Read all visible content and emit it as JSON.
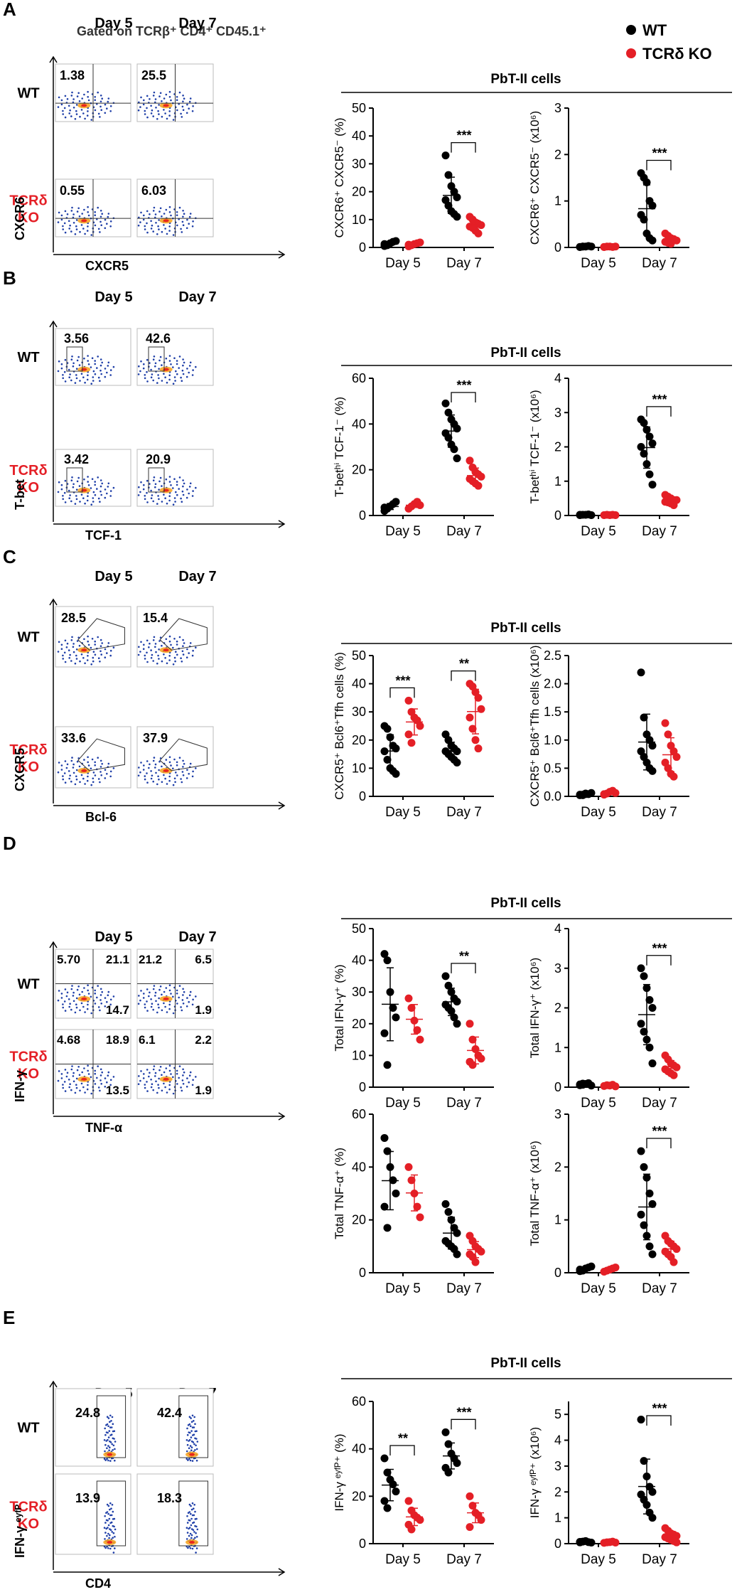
{
  "figure": {
    "legend": {
      "wt": "WT",
      "ko": "TCRδ KO",
      "wt_color": "#000000",
      "ko_color": "#e41f26"
    },
    "gating_note": "Gated on TCRβ⁺ CD4⁺ CD45.1⁺",
    "days": [
      "Day 5",
      "Day 7"
    ],
    "row_labels": {
      "wt": "WT",
      "ko_line1": "TCRδ",
      "ko_line2": "KO"
    },
    "ko_label_color": "#e41f26"
  },
  "chart_data": [
    {
      "panel": "A",
      "group_title": "PbT-II cells",
      "flow": {
        "y_label": "CXCR6",
        "x_label": "CXCR5",
        "gate": "quadrant",
        "values": {
          "wt_day5": "1.38",
          "wt_day7": "25.5",
          "ko_day5": "0.55",
          "ko_day7": "6.03"
        }
      },
      "charts": [
        {
          "type": "scatter",
          "ylabel": "CXCR6⁺ CXCR5⁻ (%)",
          "ylim": [
            0,
            50
          ],
          "yticks": [
            "0",
            "10",
            "20",
            "30",
            "40",
            "50"
          ],
          "categories": [
            "Day 5",
            "Day 7"
          ],
          "series": [
            {
              "name": "WT",
              "day5": [
                0.5,
                1.0,
                1.5,
                2.0,
                2.3,
                1.2,
                0.8
              ],
              "day7": [
                33,
                26,
                22,
                20,
                18,
                17,
                15,
                13,
                12,
                11
              ]
            },
            {
              "name": "TCRδ KO",
              "day5": [
                0.4,
                0.8,
                1.2,
                1.5,
                1.8,
                1.0
              ],
              "day7": [
                11,
                10,
                9,
                8.5,
                8,
                7.5,
                7,
                6,
                5
              ]
            }
          ],
          "significance": [
            {
              "day": "Day 7",
              "label": "***"
            }
          ]
        },
        {
          "type": "scatter",
          "ylabel": "CXCR6⁺ CXCR5⁻ (x10⁶)",
          "ylim": [
            0,
            3
          ],
          "yticks": [
            "0",
            "1",
            "2",
            "3"
          ],
          "categories": [
            "Day 5",
            "Day 7"
          ],
          "series": [
            {
              "name": "WT",
              "day5": [
                0.01,
                0.02,
                0.02,
                0.03,
                0.02,
                0.01,
                0.02
              ],
              "day7": [
                1.6,
                1.5,
                1.4,
                1.0,
                0.9,
                0.7,
                0.6,
                0.3,
                0.2,
                0.15
              ]
            },
            {
              "name": "TCRδ KO",
              "day5": [
                0.01,
                0.02,
                0.02,
                0.01,
                0.02,
                0.01
              ],
              "day7": [
                0.3,
                0.25,
                0.2,
                0.18,
                0.15,
                0.12,
                0.1,
                0.08
              ]
            }
          ],
          "significance": [
            {
              "day": "Day 7",
              "label": "***"
            }
          ]
        }
      ]
    },
    {
      "panel": "B",
      "group_title": "PbT-II cells",
      "flow": {
        "y_label": "T-bet",
        "x_label": "TCF-1",
        "gate": "rect",
        "values": {
          "wt_day5": "3.56",
          "wt_day7": "42.6",
          "ko_day5": "3.42",
          "ko_day7": "20.9"
        }
      },
      "charts": [
        {
          "type": "scatter",
          "ylabel": "T-betʰⁱ TCF-1⁻ (%)",
          "ylim": [
            0,
            60
          ],
          "yticks": [
            "0",
            "20",
            "40",
            "60"
          ],
          "categories": [
            "Day 5",
            "Day 7"
          ],
          "series": [
            {
              "name": "WT",
              "day5": [
                2,
                3,
                4,
                5,
                6,
                3.5
              ],
              "day7": [
                49,
                45,
                42,
                40,
                38,
                36,
                34,
                31,
                29,
                25
              ]
            },
            {
              "name": "TCRδ KO",
              "day5": [
                3,
                4,
                5,
                6,
                4.5
              ],
              "day7": [
                24,
                21,
                19,
                18,
                17,
                16,
                15,
                14,
                13
              ]
            }
          ],
          "significance": [
            {
              "day": "Day 7",
              "label": "***"
            }
          ]
        },
        {
          "type": "scatter",
          "ylabel": "T-betʰⁱ TCF-1⁻ (x10⁶)",
          "ylim": [
            0,
            4
          ],
          "yticks": [
            "0",
            "1",
            "2",
            "3",
            "4"
          ],
          "categories": [
            "Day 5",
            "Day 7"
          ],
          "series": [
            {
              "name": "WT",
              "day5": [
                0.01,
                0.02,
                0.02,
                0.03,
                0.01,
                0.02
              ],
              "day7": [
                2.8,
                2.7,
                2.5,
                2.3,
                2.1,
                2.0,
                1.8,
                1.5,
                1.2,
                0.9
              ]
            },
            {
              "name": "TCRδ KO",
              "day5": [
                0.01,
                0.02,
                0.01,
                0.02,
                0.01
              ],
              "day7": [
                0.6,
                0.55,
                0.5,
                0.45,
                0.45,
                0.4,
                0.38,
                0.35,
                0.3
              ]
            }
          ],
          "significance": [
            {
              "day": "Day 7",
              "label": "***"
            }
          ]
        }
      ]
    },
    {
      "panel": "C",
      "group_title": "PbT-II cells",
      "flow": {
        "y_label": "CXCR5",
        "x_label": "Bcl-6",
        "gate": "polygon",
        "values": {
          "wt_day5": "28.5",
          "wt_day7": "15.4",
          "ko_day5": "33.6",
          "ko_day7": "37.9"
        }
      },
      "charts": [
        {
          "type": "scatter",
          "ylabel": "CXCR5⁺ Bcl6⁺Tfh cells (%)",
          "ylim": [
            0,
            50
          ],
          "yticks": [
            "0",
            "10",
            "20",
            "30",
            "40",
            "50"
          ],
          "categories": [
            "Day 5",
            "Day 7"
          ],
          "series": [
            {
              "name": "WT",
              "day5": [
                25,
                24,
                21,
                18,
                17,
                16,
                13,
                10,
                9,
                8
              ],
              "day7": [
                22,
                20,
                18,
                17,
                16,
                16,
                15,
                14,
                13,
                12
              ]
            },
            {
              "name": "TCRδ KO",
              "day5": [
                34,
                30,
                28,
                27,
                25,
                22,
                19
              ],
              "day7": [
                40,
                39,
                37,
                35,
                31,
                28,
                24,
                20,
                17
              ]
            }
          ],
          "significance": [
            {
              "day": "Day 5",
              "label": "***"
            },
            {
              "day": "Day 7",
              "label": "**"
            }
          ]
        },
        {
          "type": "scatter",
          "ylabel": "CXCR5⁺ Bcl6⁺Tfh cells (x10⁶)",
          "ylim": [
            0,
            2.5
          ],
          "yticks": [
            "0.0",
            "0.5",
            "1.0",
            "1.5",
            "2.0",
            "2.5"
          ],
          "categories": [
            "Day 5",
            "Day 7"
          ],
          "series": [
            {
              "name": "WT",
              "day5": [
                0.02,
                0.03,
                0.05,
                0.04,
                0.06,
                0.03,
                0.02,
                0.04
              ],
              "day7": [
                2.2,
                1.4,
                1.1,
                1.0,
                0.9,
                0.8,
                0.7,
                0.6,
                0.5,
                0.45
              ]
            },
            {
              "name": "TCRδ KO",
              "day5": [
                0.03,
                0.05,
                0.08,
                0.1,
                0.06,
                0.04
              ],
              "day7": [
                1.3,
                1.1,
                0.9,
                0.8,
                0.7,
                0.6,
                0.5,
                0.4,
                0.35
              ]
            }
          ],
          "significance": []
        }
      ]
    },
    {
      "panel": "D",
      "group_title": "PbT-II cells",
      "flow": {
        "y_label": "IFN-γ",
        "x_label": "TNF-α",
        "gate": "quadrant4",
        "values": {
          "wt_day5_ul": "5.70",
          "wt_day5_ur": "21.1",
          "wt_day5_lr": "14.7",
          "wt_day7_ul": "21.2",
          "wt_day7_ur": "6.5",
          "wt_day7_lr": "1.9",
          "ko_day5_ul": "4.68",
          "ko_day5_ur": "18.9",
          "ko_day5_lr": "13.5",
          "ko_day7_ul": "6.1",
          "ko_day7_ur": "2.2",
          "ko_day7_lr": "1.9"
        }
      },
      "charts": [
        {
          "type": "scatter",
          "ylabel": "Total IFN-γ⁺ (%)",
          "ylim": [
            0,
            50
          ],
          "yticks": [
            "0",
            "10",
            "20",
            "30",
            "40",
            "50"
          ],
          "categories": [
            "Day 5",
            "Day 7"
          ],
          "series": [
            {
              "name": "WT",
              "day5": [
                42,
                40,
                30,
                25,
                22,
                17,
                7
              ],
              "day7": [
                35,
                32,
                30,
                28,
                27,
                26,
                25,
                24,
                22,
                20
              ]
            },
            {
              "name": "TCRδ KO",
              "day5": [
                28,
                25,
                21,
                18,
                15
              ],
              "day7": [
                20,
                15,
                12,
                10,
                9,
                8,
                7
              ]
            }
          ],
          "significance": [
            {
              "day": "Day 7",
              "label": "**"
            }
          ]
        },
        {
          "type": "scatter",
          "ylabel": "Total IFN-γ⁺ (x10⁶)",
          "ylim": [
            0,
            4
          ],
          "yticks": [
            "0",
            "1",
            "2",
            "3",
            "4"
          ],
          "categories": [
            "Day 5",
            "Day 7"
          ],
          "series": [
            {
              "name": "WT",
              "day5": [
                0.05,
                0.06,
                0.08,
                0.1,
                0.04,
                0.07,
                0.09
              ],
              "day7": [
                3.0,
                2.8,
                2.5,
                2.2,
                2.0,
                1.6,
                1.4,
                1.2,
                1.0,
                0.6
              ]
            },
            {
              "name": "TCRδ KO",
              "day5": [
                0.03,
                0.05,
                0.04,
                0.06,
                0.02
              ],
              "day7": [
                0.8,
                0.7,
                0.6,
                0.55,
                0.5,
                0.45,
                0.4,
                0.35,
                0.3
              ]
            }
          ],
          "significance": [
            {
              "day": "Day 7",
              "label": "***"
            }
          ]
        },
        {
          "type": "scatter",
          "ylabel": "Total TNF-α⁺ (%)",
          "ylim": [
            0,
            60
          ],
          "yticks": [
            "0",
            "20",
            "40",
            "60"
          ],
          "categories": [
            "Day 5",
            "Day 7"
          ],
          "series": [
            {
              "name": "WT",
              "day5": [
                51,
                46,
                40,
                35,
                30,
                25,
                17
              ],
              "day7": [
                26,
                23,
                20,
                17,
                15,
                12,
                11,
                10,
                9,
                7
              ]
            },
            {
              "name": "TCRδ KO",
              "day5": [
                40,
                35,
                30,
                25,
                21
              ],
              "day7": [
                14,
                12,
                10,
                9,
                8,
                7,
                6,
                4
              ]
            }
          ],
          "significance": []
        },
        {
          "type": "scatter",
          "ylabel": "Total TNF-α⁺ (x10⁶)",
          "ylim": [
            0,
            3
          ],
          "yticks": [
            "0",
            "1",
            "2",
            "3"
          ],
          "categories": [
            "Day 5",
            "Day 7"
          ],
          "series": [
            {
              "name": "WT",
              "day5": [
                0.03,
                0.05,
                0.08,
                0.1,
                0.12,
                0.06,
                0.04
              ],
              "day7": [
                2.3,
                2.0,
                1.8,
                1.5,
                1.3,
                1.1,
                0.9,
                0.7,
                0.5,
                0.35
              ]
            },
            {
              "name": "TCRδ KO",
              "day5": [
                0.02,
                0.04,
                0.06,
                0.08,
                0.1
              ],
              "day7": [
                0.7,
                0.6,
                0.55,
                0.5,
                0.45,
                0.4,
                0.35,
                0.3,
                0.2
              ]
            }
          ],
          "significance": [
            {
              "day": "Day 7",
              "label": "***"
            }
          ]
        }
      ]
    },
    {
      "panel": "E",
      "group_title": "PbT-II cells",
      "flow": {
        "y_label": "IFN-γ ᵉʸᶠᴾ",
        "x_label": "CD4",
        "gate": "tallrect",
        "values": {
          "wt_day5": "24.8",
          "wt_day7": "42.4",
          "ko_day5": "13.9",
          "ko_day7": "18.3"
        }
      },
      "charts": [
        {
          "type": "scatter",
          "ylabel": "IFN-γ ᵉʸᶠᴾ⁺ (%)",
          "ylim": [
            0,
            60
          ],
          "yticks": [
            "0",
            "20",
            "40",
            "60"
          ],
          "categories": [
            "Day 5",
            "Day 7"
          ],
          "series": [
            {
              "name": "WT",
              "day5": [
                36,
                30,
                27,
                25,
                22,
                18,
                15
              ],
              "day7": [
                47,
                42,
                38,
                36,
                34,
                32,
                30
              ]
            },
            {
              "name": "TCRδ KO",
              "day5": [
                18,
                14,
                12,
                11,
                10,
                8,
                6
              ],
              "day7": [
                20,
                16,
                13,
                12,
                10,
                7
              ]
            }
          ],
          "significance": [
            {
              "day": "Day 5",
              "label": "**"
            },
            {
              "day": "Day 7",
              "label": "***"
            }
          ]
        },
        {
          "type": "scatter",
          "ylabel": "IFN-γ ᵉʸᶠᴾ⁺ (x10⁶)",
          "ylim": [
            0,
            5.5
          ],
          "yticks": [
            "0",
            "1",
            "2",
            "3",
            "4",
            "5"
          ],
          "categories": [
            "Day 5",
            "Day 7"
          ],
          "series": [
            {
              "name": "WT",
              "day5": [
                0.05,
                0.08,
                0.1,
                0.06,
                0.04,
                0.07
              ],
              "day7": [
                4.8,
                3.2,
                2.6,
                2.2,
                2.0,
                1.9,
                1.7,
                1.5,
                1.2,
                1.0
              ]
            },
            {
              "name": "TCRδ KO",
              "day5": [
                0.03,
                0.05,
                0.06,
                0.08,
                0.04
              ],
              "day7": [
                0.6,
                0.5,
                0.4,
                0.35,
                0.3,
                0.25,
                0.2,
                0.15,
                0.1,
                0.05
              ]
            }
          ],
          "significance": [
            {
              "day": "Day 7",
              "label": "***"
            }
          ]
        }
      ]
    }
  ]
}
